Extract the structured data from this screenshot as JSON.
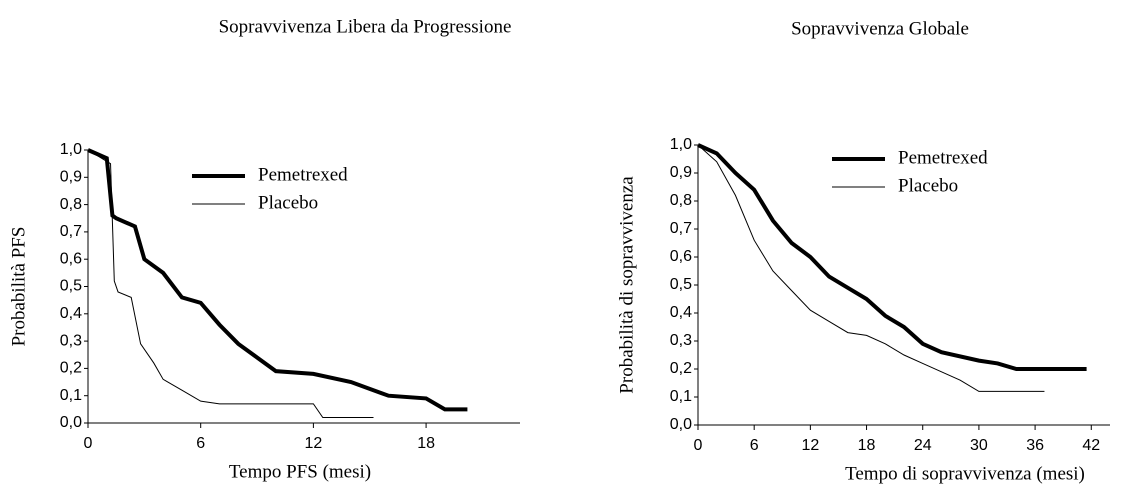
{
  "chart_data": [
    {
      "type": "line",
      "title": "Sopravvivenza Libera da Progressione",
      "x_label": "Tempo PFS (mesi)",
      "y_label": "Probabilità PFS",
      "xlim": [
        0,
        23
      ],
      "xticks": [
        0,
        6,
        12,
        18
      ],
      "ylim": [
        0,
        1
      ],
      "yticks": [
        {
          "value": 0,
          "label": "0,0"
        },
        {
          "value": 0.1,
          "label": "0,1"
        },
        {
          "value": 0.2,
          "label": "0,2"
        },
        {
          "value": 0.3,
          "label": "0,3"
        },
        {
          "value": 0.4,
          "label": "0,4"
        },
        {
          "value": 0.5,
          "label": "0,5"
        },
        {
          "value": 0.6,
          "label": "0,6"
        },
        {
          "value": 0.7,
          "label": "0,7"
        },
        {
          "value": 0.8,
          "label": "0,8"
        },
        {
          "value": 0.9,
          "label": "0,9"
        },
        {
          "value": 1,
          "label": "1,0"
        }
      ],
      "series": [
        {
          "name": "Pemetrexed",
          "color": "#000000",
          "width": 4,
          "x": [
            0,
            1,
            1.3,
            1.5,
            2.5,
            3,
            4,
            5,
            6,
            7,
            8,
            9,
            10,
            12,
            14,
            16,
            18,
            19,
            20.2
          ],
          "values": [
            1,
            0.97,
            0.76,
            0.75,
            0.72,
            0.6,
            0.55,
            0.46,
            0.44,
            0.36,
            0.29,
            0.24,
            0.19,
            0.18,
            0.15,
            0.1,
            0.09,
            0.05,
            0.05
          ]
        },
        {
          "name": "Placebo",
          "color": "#000000",
          "width": 1,
          "x": [
            0,
            1.2,
            1.4,
            1.6,
            2.3,
            2.8,
            3.5,
            4,
            5,
            6,
            7,
            12,
            12.5,
            15.2
          ],
          "values": [
            1,
            0.95,
            0.52,
            0.48,
            0.46,
            0.29,
            0.22,
            0.16,
            0.12,
            0.08,
            0.07,
            0.07,
            0.02,
            0.02
          ]
        }
      ]
    },
    {
      "type": "line",
      "title": "Sopravvivenza Globale",
      "x_label": "Tempo di sopravvivenza (mesi)",
      "y_label": "Probabilità di sopravvivenza",
      "xlim": [
        0,
        44
      ],
      "xticks": [
        0,
        6,
        12,
        18,
        24,
        30,
        36,
        42
      ],
      "ylim": [
        0,
        1
      ],
      "yticks": [
        {
          "value": 0,
          "label": "0,0"
        },
        {
          "value": 0.1,
          "label": "0,1"
        },
        {
          "value": 0.2,
          "label": "0,2"
        },
        {
          "value": 0.3,
          "label": "0,3"
        },
        {
          "value": 0.4,
          "label": "0,4"
        },
        {
          "value": 0.5,
          "label": "0,5"
        },
        {
          "value": 0.6,
          "label": "0,6"
        },
        {
          "value": 0.7,
          "label": "0,7"
        },
        {
          "value": 0.8,
          "label": "0,8"
        },
        {
          "value": 0.9,
          "label": "0,9"
        },
        {
          "value": 1,
          "label": "1,0"
        }
      ],
      "series": [
        {
          "name": "Pemetrexed",
          "color": "#000000",
          "width": 4,
          "x": [
            0,
            2,
            4,
            6,
            8,
            10,
            12,
            14,
            16,
            18,
            20,
            22,
            24,
            26,
            30,
            32,
            34,
            36,
            41.5
          ],
          "values": [
            1,
            0.97,
            0.9,
            0.84,
            0.73,
            0.65,
            0.6,
            0.53,
            0.49,
            0.45,
            0.39,
            0.35,
            0.29,
            0.26,
            0.23,
            0.22,
            0.2,
            0.2,
            0.2
          ]
        },
        {
          "name": "Placebo",
          "color": "#000000",
          "width": 1,
          "x": [
            0,
            2,
            4,
            6,
            8,
            10,
            12,
            14,
            16,
            18,
            20,
            22,
            24,
            26,
            28,
            30,
            32,
            37
          ],
          "values": [
            1,
            0.94,
            0.82,
            0.66,
            0.55,
            0.48,
            0.41,
            0.37,
            0.33,
            0.32,
            0.29,
            0.25,
            0.22,
            0.19,
            0.16,
            0.12,
            0.12,
            0.12
          ]
        }
      ]
    }
  ]
}
